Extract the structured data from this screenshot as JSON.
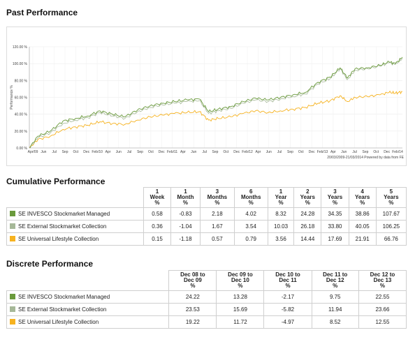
{
  "titles": {
    "past": "Past Performance",
    "cumulative": "Cumulative Performance",
    "discrete": "Discrete Performance"
  },
  "colors": {
    "invesco": "#6a9a3c",
    "external": "#a6b898",
    "universal": "#f6b21f"
  },
  "chart_data": {
    "type": "line",
    "title": "",
    "xlabel": "",
    "ylabel": "Performance %",
    "ylim": [
      0,
      120
    ],
    "yticks": [
      "0.00 %",
      "20.00 %",
      "40.00 %",
      "60.00 %",
      "80.00 %",
      "100.00 %",
      "120.00 %"
    ],
    "ytick_values": [
      0,
      20,
      40,
      60,
      80,
      100,
      120
    ],
    "xticks": [
      "Apr/09",
      "Jun",
      "Jul",
      "Sep",
      "Oct",
      "Dec",
      "Feb/10",
      "Apr",
      "Jun",
      "Jul",
      "Sep",
      "Oct",
      "Dec",
      "Feb/11",
      "Apr",
      "Jun",
      "Jul",
      "Sep",
      "Oct",
      "Dec",
      "Feb/12",
      "Apr",
      "Jun",
      "Jul",
      "Sep",
      "Oct",
      "Dec",
      "Feb/13",
      "Apr",
      "Jun",
      "Jul",
      "Sep",
      "Oct",
      "Dec",
      "Feb/14"
    ],
    "x_range": [
      "2009-03-20",
      "2014-03-21"
    ],
    "credit": "20/03/2009-21/03/2014 Powered by data from FE",
    "grid": true,
    "series": [
      {
        "name": "SE INVESCO Stockmarket Managed",
        "color_key": "invesco",
        "x": [
          "2009-03-20",
          "2009-05-01",
          "2009-07-01",
          "2009-09-01",
          "2009-11-01",
          "2010-01-01",
          "2010-03-01",
          "2010-05-01",
          "2010-07-01",
          "2010-09-01",
          "2010-11-01",
          "2011-01-01",
          "2011-03-01",
          "2011-05-01",
          "2011-07-01",
          "2011-08-15",
          "2011-10-01",
          "2011-12-01",
          "2012-02-01",
          "2012-04-01",
          "2012-06-01",
          "2012-08-01",
          "2012-10-01",
          "2012-12-01",
          "2013-02-01",
          "2013-04-01",
          "2013-05-20",
          "2013-06-25",
          "2013-08-01",
          "2013-10-01",
          "2013-12-01",
          "2014-01-15",
          "2014-02-15",
          "2014-03-21"
        ],
        "y": [
          0,
          14,
          20,
          32,
          35,
          38,
          44,
          40,
          37,
          45,
          50,
          53,
          55,
          57,
          58,
          43,
          46,
          49,
          55,
          59,
          57,
          60,
          63,
          66,
          78,
          84,
          95,
          83,
          94,
          95,
          98,
          102,
          100,
          107.67
        ]
      },
      {
        "name": "SE External Stockmarket Collection",
        "color_key": "external",
        "x": [
          "2009-03-20",
          "2009-05-01",
          "2009-07-01",
          "2009-09-01",
          "2009-11-01",
          "2010-01-01",
          "2010-03-01",
          "2010-05-01",
          "2010-07-01",
          "2010-09-01",
          "2010-11-01",
          "2011-01-01",
          "2011-03-01",
          "2011-05-01",
          "2011-07-01",
          "2011-08-15",
          "2011-10-01",
          "2011-12-01",
          "2012-02-01",
          "2012-04-01",
          "2012-06-01",
          "2012-08-01",
          "2012-10-01",
          "2012-12-01",
          "2013-02-01",
          "2013-04-01",
          "2013-05-20",
          "2013-06-25",
          "2013-08-01",
          "2013-10-01",
          "2013-12-01",
          "2014-01-15",
          "2014-02-15",
          "2014-03-21"
        ],
        "y": [
          0,
          12,
          18,
          29,
          33,
          36,
          42,
          38,
          35,
          43,
          48,
          51,
          53,
          55,
          56,
          41,
          44,
          47,
          53,
          57,
          55,
          58,
          61,
          64,
          76,
          82,
          94,
          81,
          92,
          94,
          97,
          101,
          99,
          106.25
        ]
      },
      {
        "name": "SE Universal Lifestyle Collection",
        "color_key": "universal",
        "x": [
          "2009-03-20",
          "2009-05-01",
          "2009-07-01",
          "2009-09-01",
          "2009-11-01",
          "2010-01-01",
          "2010-03-01",
          "2010-05-01",
          "2010-07-01",
          "2010-09-01",
          "2010-11-01",
          "2011-01-01",
          "2011-03-01",
          "2011-05-01",
          "2011-07-01",
          "2011-08-15",
          "2011-10-01",
          "2011-12-01",
          "2012-02-01",
          "2012-04-01",
          "2012-06-01",
          "2012-08-01",
          "2012-10-01",
          "2012-12-01",
          "2013-02-01",
          "2013-04-01",
          "2013-05-20",
          "2013-06-25",
          "2013-08-01",
          "2013-10-01",
          "2013-12-01",
          "2014-01-15",
          "2014-02-15",
          "2014-03-21"
        ],
        "y": [
          0,
          10,
          14,
          22,
          25,
          27,
          31,
          29,
          28,
          33,
          37,
          39,
          41,
          42,
          43,
          33,
          35,
          37,
          41,
          44,
          42,
          44,
          46,
          48,
          53,
          56,
          62,
          55,
          60,
          61,
          63,
          66,
          65,
          66.76
        ]
      }
    ]
  },
  "cumulative": {
    "headers": [
      "1 Week %",
      "1 Month %",
      "3 Months %",
      "6 Months %",
      "1 Year %",
      "2 Years %",
      "3 Years %",
      "4 Years %",
      "5 Years %"
    ],
    "header_lines": [
      [
        "1",
        "Week",
        "%"
      ],
      [
        "1",
        "Month",
        "%"
      ],
      [
        "3",
        "Months",
        "%"
      ],
      [
        "6",
        "Months",
        "%"
      ],
      [
        "1",
        "Year",
        "%"
      ],
      [
        "2",
        "Years",
        "%"
      ],
      [
        "3",
        "Years",
        "%"
      ],
      [
        "4",
        "Years",
        "%"
      ],
      [
        "5",
        "Years",
        "%"
      ]
    ],
    "rows": [
      {
        "name": "SE INVESCO Stockmarket Managed",
        "color_key": "invesco",
        "values": [
          "0.58",
          "-0.83",
          "2.18",
          "4.02",
          "8.32",
          "24.28",
          "34.35",
          "38.86",
          "107.67"
        ]
      },
      {
        "name": "SE External Stockmarket Collection",
        "color_key": "external",
        "values": [
          "0.36",
          "-1.04",
          "1.67",
          "3.54",
          "10.03",
          "26.18",
          "33.80",
          "40.05",
          "106.25"
        ]
      },
      {
        "name": "SE Universal Lifestyle Collection",
        "color_key": "universal",
        "values": [
          "0.15",
          "-1.18",
          "0.57",
          "0.79",
          "3.56",
          "14.44",
          "17.69",
          "21.91",
          "66.76"
        ]
      }
    ]
  },
  "discrete": {
    "header_lines": [
      [
        "Dec 08 to",
        "Dec 09",
        "%"
      ],
      [
        "Dec 09 to",
        "Dec 10",
        "%"
      ],
      [
        "Dec 10 to",
        "Dec 11",
        "%"
      ],
      [
        "Dec 11 to",
        "Dec 12",
        "%"
      ],
      [
        "Dec 12 to",
        "Dec 13",
        "%"
      ]
    ],
    "rows": [
      {
        "name": "SE INVESCO Stockmarket Managed",
        "color_key": "invesco",
        "values": [
          "24.22",
          "13.28",
          "-2.17",
          "9.75",
          "22.55"
        ]
      },
      {
        "name": "SE External Stockmarket Collection",
        "color_key": "external",
        "values": [
          "23.53",
          "15.69",
          "-5.82",
          "11.94",
          "23.66"
        ]
      },
      {
        "name": "SE Universal Lifestyle Collection",
        "color_key": "universal",
        "values": [
          "19.22",
          "11.72",
          "-4.97",
          "8.52",
          "12.55"
        ]
      }
    ]
  }
}
